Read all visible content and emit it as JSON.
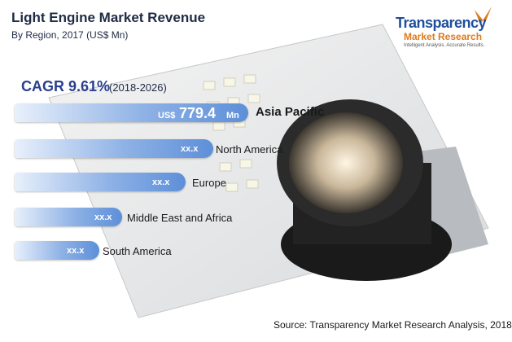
{
  "header": {
    "title": "Light Engine Market Revenue",
    "subtitle": "By Region, 2017 (US$ Mn)"
  },
  "logo": {
    "name": "Transparency",
    "name2": "Market Research",
    "tagline": "Intelligent Analysis. Accurate Results."
  },
  "cagr": {
    "label": "CAGR 9.61%",
    "period": "(2018-2026)"
  },
  "regions": [
    {
      "prefix": "US$",
      "value": "779.4",
      "unit": "Mn",
      "name": "Asia Pacific"
    },
    {
      "value": "xx.x",
      "name": "North America"
    },
    {
      "value": "xx.x",
      "name": "Europe"
    },
    {
      "value": "xx.x",
      "name": "Middle East and Africa"
    },
    {
      "value": "xx.x",
      "name": "South America"
    }
  ],
  "source": "Source: Transparency Market Research Analysis, 2018"
}
